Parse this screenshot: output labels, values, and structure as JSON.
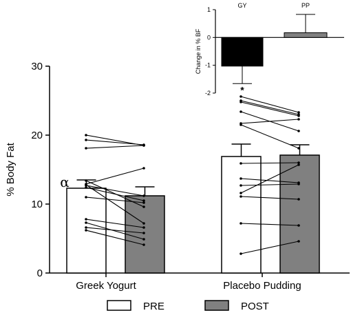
{
  "colors": {
    "pre": "#ffffff",
    "post": "#808080",
    "inset_gy": "#000000",
    "inset_pp": "#808080",
    "axis": "#000000"
  },
  "chart_data": [
    {
      "type": "bar",
      "ylabel": "% Body Fat",
      "xlabel": "",
      "ylim": [
        0,
        30
      ],
      "yticks": [
        "0",
        "10",
        "20",
        "30"
      ],
      "grid": false,
      "legend_position": "bottom",
      "categories": [
        "Greek Yogurt",
        "Placebo Pudding"
      ],
      "series": [
        {
          "name": "PRE",
          "values": [
            12.3,
            16.9
          ],
          "errors": [
            1.2,
            1.8
          ]
        },
        {
          "name": "POST",
          "values": [
            11.2,
            17.1
          ],
          "errors": [
            1.3,
            1.5
          ]
        }
      ],
      "individual_pairs": [
        {
          "category": "Greek Yogurt",
          "pre": [
            20.0,
            19.3,
            18.1,
            13.4,
            12.9,
            12.8,
            12.7,
            12.4,
            11.0,
            7.8,
            7.3,
            6.6,
            6.2
          ],
          "post": [
            18.5,
            18.6,
            18.5,
            9.6,
            15.2,
            7.2,
            11.2,
            10.5,
            10.2,
            6.6,
            4.9,
            5.8,
            4.1
          ]
        },
        {
          "category": "Placebo Pudding",
          "pre": [
            25.6,
            25.0,
            24.8,
            23.4,
            21.7,
            21.5,
            15.9,
            13.7,
            12.7,
            11.6,
            11.1,
            7.2,
            2.8
          ],
          "post": [
            23.3,
            23.0,
            22.8,
            20.6,
            22.3,
            18.1,
            16.0,
            13.1,
            12.9,
            15.7,
            10.7,
            6.9,
            4.6
          ]
        }
      ],
      "annotations": [
        {
          "text": "α",
          "category": "Greek Yogurt"
        }
      ]
    },
    {
      "type": "bar",
      "ylabel": "Change in % BF",
      "xlabel": "",
      "ylim": [
        -2,
        1
      ],
      "yticks": [
        "-2",
        "-1",
        "0",
        "1"
      ],
      "categories": [
        "GY",
        "PP"
      ],
      "values": [
        -1.03,
        0.17
      ],
      "errors": [
        0.63,
        0.66
      ],
      "annotations": [
        {
          "text": "*",
          "category": "GY"
        }
      ]
    }
  ],
  "legend": {
    "pre_label": "PRE",
    "post_label": "POST"
  }
}
